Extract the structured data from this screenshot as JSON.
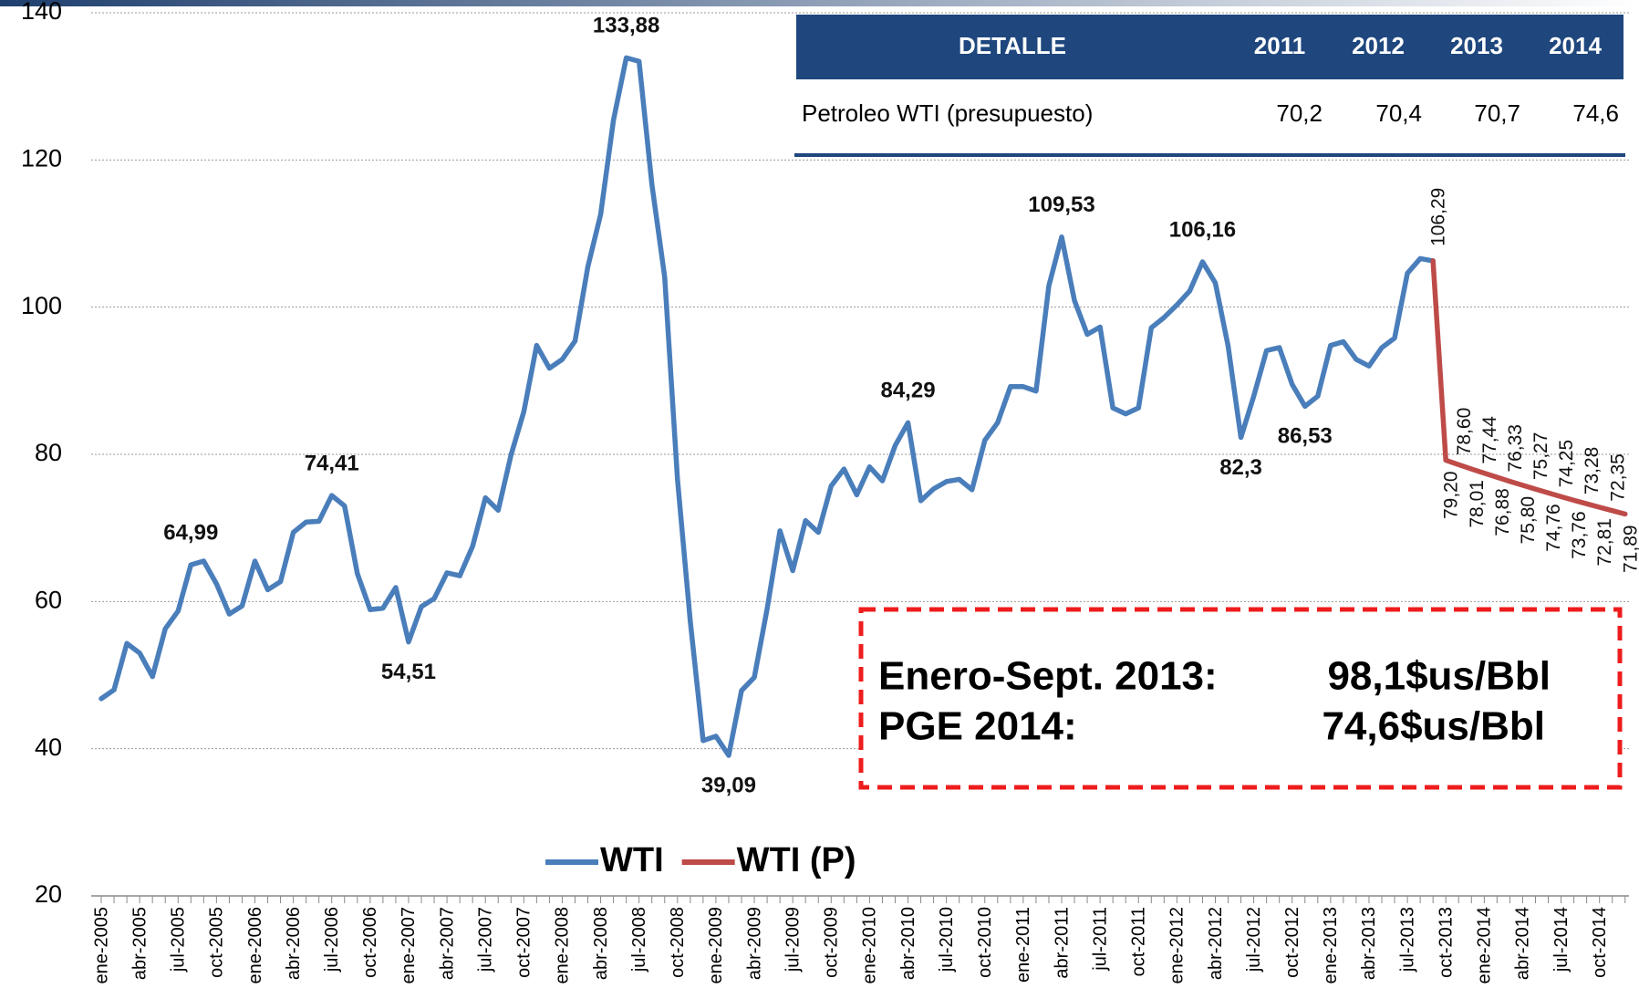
{
  "chart_data": {
    "type": "line",
    "categories": [
      "ene-2005",
      null,
      null,
      "abr-2005",
      null,
      null,
      "jul-2005",
      null,
      null,
      "oct-2005",
      null,
      null,
      "ene-2006",
      null,
      null,
      "abr-2006",
      null,
      null,
      "jul-2006",
      null,
      null,
      "oct-2006",
      null,
      null,
      "ene-2007",
      null,
      null,
      "abr-2007",
      null,
      null,
      "jul-2007",
      null,
      null,
      "oct-2007",
      null,
      null,
      "ene-2008",
      null,
      null,
      "abr-2008",
      null,
      null,
      "jul-2008",
      null,
      null,
      "oct-2008",
      null,
      null,
      "ene-2009",
      null,
      null,
      "abr-2009",
      null,
      null,
      "jul-2009",
      null,
      null,
      "oct-2009",
      null,
      null,
      "ene-2010",
      null,
      null,
      "abr-2010",
      null,
      null,
      "jul-2010",
      null,
      null,
      "oct-2010",
      null,
      null,
      "ene-2011",
      null,
      null,
      "abr-2011",
      null,
      null,
      "jul-2011",
      null,
      null,
      "oct-2011",
      null,
      null,
      "ene-2012",
      null,
      null,
      "abr-2012",
      null,
      null,
      "jul-2012",
      null,
      null,
      "oct-2012",
      null,
      null,
      "ene-2013",
      null,
      null,
      "abr-2013",
      null,
      null,
      "jul-2013",
      null,
      null,
      "oct-2013",
      null,
      null,
      "ene-2014",
      null,
      null,
      "abr-2014",
      null,
      null,
      "jul-2014",
      null,
      null,
      "oct-2014",
      null,
      null
    ],
    "series": [
      {
        "name": "WTI",
        "color": "#4a7ebb",
        "values": [
          46.8,
          48.0,
          54.3,
          53.0,
          49.8,
          56.3,
          58.7,
          64.99,
          65.5,
          62.4,
          58.3,
          59.4,
          65.5,
          61.6,
          62.7,
          69.4,
          70.8,
          70.9,
          74.41,
          73.0,
          63.8,
          58.9,
          59.1,
          61.9,
          54.51,
          59.3,
          60.4,
          63.9,
          63.5,
          67.5,
          74.1,
          72.4,
          79.9,
          85.8,
          94.8,
          91.7,
          92.9,
          95.4,
          105.5,
          112.6,
          125.4,
          133.88,
          133.4,
          116.7,
          104.1,
          76.6,
          57.3,
          41.1,
          41.7,
          39.09,
          47.9,
          49.7,
          59.0,
          69.6,
          64.2,
          71.0,
          69.4,
          75.7,
          78.0,
          74.5,
          78.3,
          76.4,
          81.2,
          84.29,
          73.7,
          75.3,
          76.3,
          76.6,
          75.2,
          81.9,
          84.3,
          89.2,
          89.2,
          88.6,
          102.9,
          109.53,
          100.9,
          96.3,
          97.3,
          86.3,
          85.5,
          86.3,
          97.2,
          98.6,
          100.3,
          102.2,
          106.16,
          103.3,
          94.7,
          82.3,
          87.9,
          94.1,
          94.5,
          89.5,
          86.53,
          87.9,
          94.8,
          95.3,
          92.9,
          92.0,
          94.5,
          95.8,
          104.6,
          106.6,
          106.29,
          null,
          null,
          null,
          null,
          null,
          null,
          null,
          null,
          null,
          null,
          null,
          null,
          null,
          null,
          null
        ],
        "value_labels": [
          null,
          null,
          null,
          null,
          null,
          null,
          null,
          "64,99",
          null,
          null,
          null,
          null,
          null,
          null,
          null,
          null,
          null,
          null,
          "74,41",
          null,
          null,
          null,
          null,
          null,
          "54,51",
          null,
          null,
          null,
          null,
          null,
          null,
          null,
          null,
          null,
          null,
          null,
          null,
          null,
          null,
          null,
          null,
          "133,88",
          null,
          null,
          null,
          null,
          null,
          null,
          null,
          "39,09",
          null,
          null,
          null,
          null,
          null,
          null,
          null,
          null,
          null,
          null,
          null,
          null,
          null,
          "84,29",
          null,
          null,
          null,
          null,
          null,
          null,
          null,
          null,
          null,
          null,
          null,
          "109,53",
          null,
          null,
          null,
          null,
          null,
          null,
          null,
          null,
          null,
          null,
          "106,16",
          null,
          null,
          "82,3",
          null,
          null,
          null,
          null,
          "86,53",
          null,
          null,
          null,
          null,
          null,
          null,
          null,
          null,
          null,
          "106,29",
          null,
          null,
          null,
          null,
          null,
          null,
          null,
          null,
          null,
          null,
          null,
          null,
          null,
          null,
          null
        ]
      },
      {
        "name": "WTI (P)",
        "color": "#be4b48",
        "values": [
          null,
          null,
          null,
          null,
          null,
          null,
          null,
          null,
          null,
          null,
          null,
          null,
          null,
          null,
          null,
          null,
          null,
          null,
          null,
          null,
          null,
          null,
          null,
          null,
          null,
          null,
          null,
          null,
          null,
          null,
          null,
          null,
          null,
          null,
          null,
          null,
          null,
          null,
          null,
          null,
          null,
          null,
          null,
          null,
          null,
          null,
          null,
          null,
          null,
          null,
          null,
          null,
          null,
          null,
          null,
          null,
          null,
          null,
          null,
          null,
          null,
          null,
          null,
          null,
          null,
          null,
          null,
          null,
          null,
          null,
          null,
          null,
          null,
          null,
          null,
          null,
          null,
          null,
          null,
          null,
          null,
          null,
          null,
          null,
          null,
          null,
          null,
          null,
          null,
          null,
          null,
          null,
          null,
          null,
          null,
          null,
          null,
          null,
          null,
          null,
          null,
          null,
          null,
          null,
          106.29,
          79.2,
          78.6,
          78.01,
          77.44,
          76.88,
          76.33,
          75.8,
          75.27,
          74.76,
          74.25,
          73.76,
          73.28,
          72.81,
          72.35,
          71.89
        ],
        "value_labels": [
          null,
          null,
          null,
          null,
          null,
          null,
          null,
          null,
          null,
          null,
          null,
          null,
          null,
          null,
          null,
          null,
          null,
          null,
          null,
          null,
          null,
          null,
          null,
          null,
          null,
          null,
          null,
          null,
          null,
          null,
          null,
          null,
          null,
          null,
          null,
          null,
          null,
          null,
          null,
          null,
          null,
          null,
          null,
          null,
          null,
          null,
          null,
          null,
          null,
          null,
          null,
          null,
          null,
          null,
          null,
          null,
          null,
          null,
          null,
          null,
          null,
          null,
          null,
          null,
          null,
          null,
          null,
          null,
          null,
          null,
          null,
          null,
          null,
          null,
          null,
          null,
          null,
          null,
          null,
          null,
          null,
          null,
          null,
          null,
          null,
          null,
          null,
          null,
          null,
          null,
          null,
          null,
          null,
          null,
          null,
          null,
          null,
          null,
          null,
          null,
          null,
          null,
          null,
          null,
          null,
          "79,20",
          "78,60",
          "78,01",
          "77,44",
          "76,88",
          "76,33",
          "75,80",
          "75,27",
          "74,76",
          "74,25",
          "73,76",
          "73,28",
          "72,81",
          "72,35",
          "71,89"
        ]
      }
    ],
    "ylim": [
      20,
      140
    ],
    "yticks": [
      20,
      40,
      60,
      80,
      100,
      120,
      140
    ],
    "grid": true,
    "legend": "bottom"
  },
  "table": {
    "header": [
      "DETALLE",
      "2011",
      "2012",
      "2013",
      "2014"
    ],
    "rows": [
      [
        "Petroleo WTI (presupuesto)",
        "70,2",
        "70,4",
        "70,7",
        "74,6"
      ]
    ]
  },
  "annotation": {
    "lines": [
      [
        "Enero-Sept. 2013:",
        "98,1$us/Bbl"
      ],
      [
        "PGE 2014:",
        "74,6$us/Bbl"
      ]
    ]
  }
}
